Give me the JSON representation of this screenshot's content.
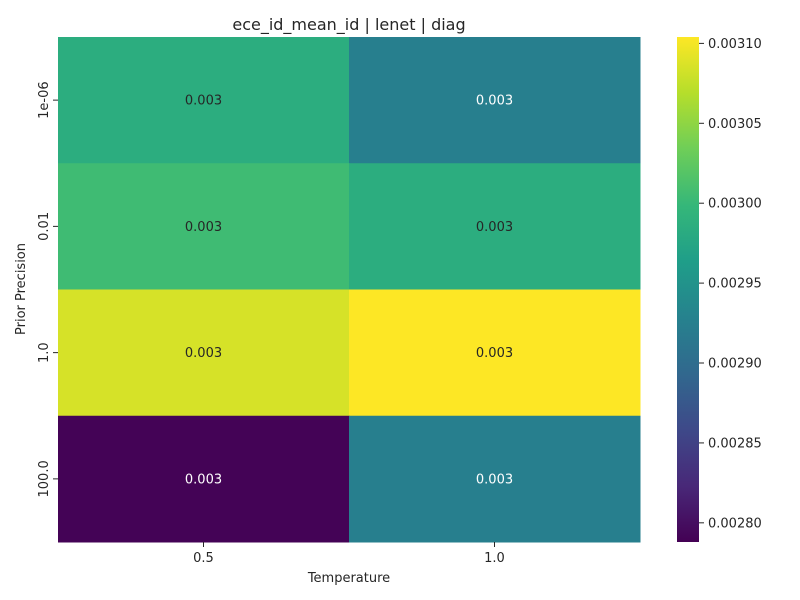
{
  "chart_data": {
    "type": "heatmap",
    "title": "ece_id_mean_id | lenet | diag",
    "xlabel": "Temperature",
    "ylabel": "Prior Precision",
    "x_categories": [
      "0.5",
      "1.0"
    ],
    "y_categories": [
      "1e-06",
      "0.01",
      "1.0",
      "100.0"
    ],
    "values": [
      [
        0.002985,
        0.002925
      ],
      [
        0.003005,
        0.002985
      ],
      [
        0.003085,
        0.003105
      ],
      [
        0.00279,
        0.002925
      ]
    ],
    "cell_labels": [
      [
        "0.003",
        "0.003"
      ],
      [
        "0.003",
        "0.003"
      ],
      [
        "0.003",
        "0.003"
      ],
      [
        "0.003",
        "0.003"
      ]
    ],
    "colormap": "viridis",
    "colorbar": {
      "vmin": 0.002788,
      "vmax": 0.003104,
      "ticks": [
        0.0028,
        0.00285,
        0.0029,
        0.00295,
        0.003,
        0.00305,
        0.0031
      ],
      "tick_labels": [
        "0.00280",
        "0.00285",
        "0.00290",
        "0.00295",
        "0.00300",
        "0.00305",
        "0.00310"
      ]
    }
  }
}
